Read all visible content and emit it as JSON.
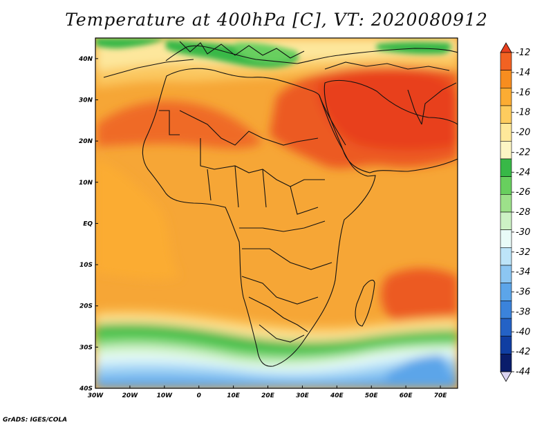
{
  "title": "Temperature at 400hPa [C], VT: 2020080912",
  "footer": "GrADS: IGES/COLA",
  "map": {
    "projection": "lat-lon",
    "lon_range": [
      -30,
      75
    ],
    "lat_range": [
      -40,
      45
    ],
    "lon_ticks": [
      "30W",
      "20W",
      "10W",
      "0",
      "10E",
      "20E",
      "30E",
      "40E",
      "50E",
      "60E",
      "70E"
    ],
    "lat_ticks": [
      "40S",
      "30S",
      "20S",
      "10S",
      "EQ",
      "10N",
      "20N",
      "30N",
      "40N"
    ]
  },
  "colorbar": {
    "labels": [
      "-12",
      "-14",
      "-16",
      "-18",
      "-20",
      "-22",
      "-24",
      "-26",
      "-28",
      "-30",
      "-32",
      "-34",
      "-36",
      "-38",
      "-40",
      "-42",
      "-44"
    ],
    "colors": [
      "#e8401f",
      "#f26222",
      "#f78d1f",
      "#fbac33",
      "#fdcc5e",
      "#fee89a",
      "#fdf6c4",
      "#38b847",
      "#68cf5e",
      "#9de18a",
      "#cdf2c5",
      "#e9fbf8",
      "#bde4f8",
      "#8cc6f2",
      "#5ca5e9",
      "#3b83db",
      "#2462c6",
      "#103ea2",
      "#0a1d6b",
      "#dbd4f2"
    ]
  }
}
